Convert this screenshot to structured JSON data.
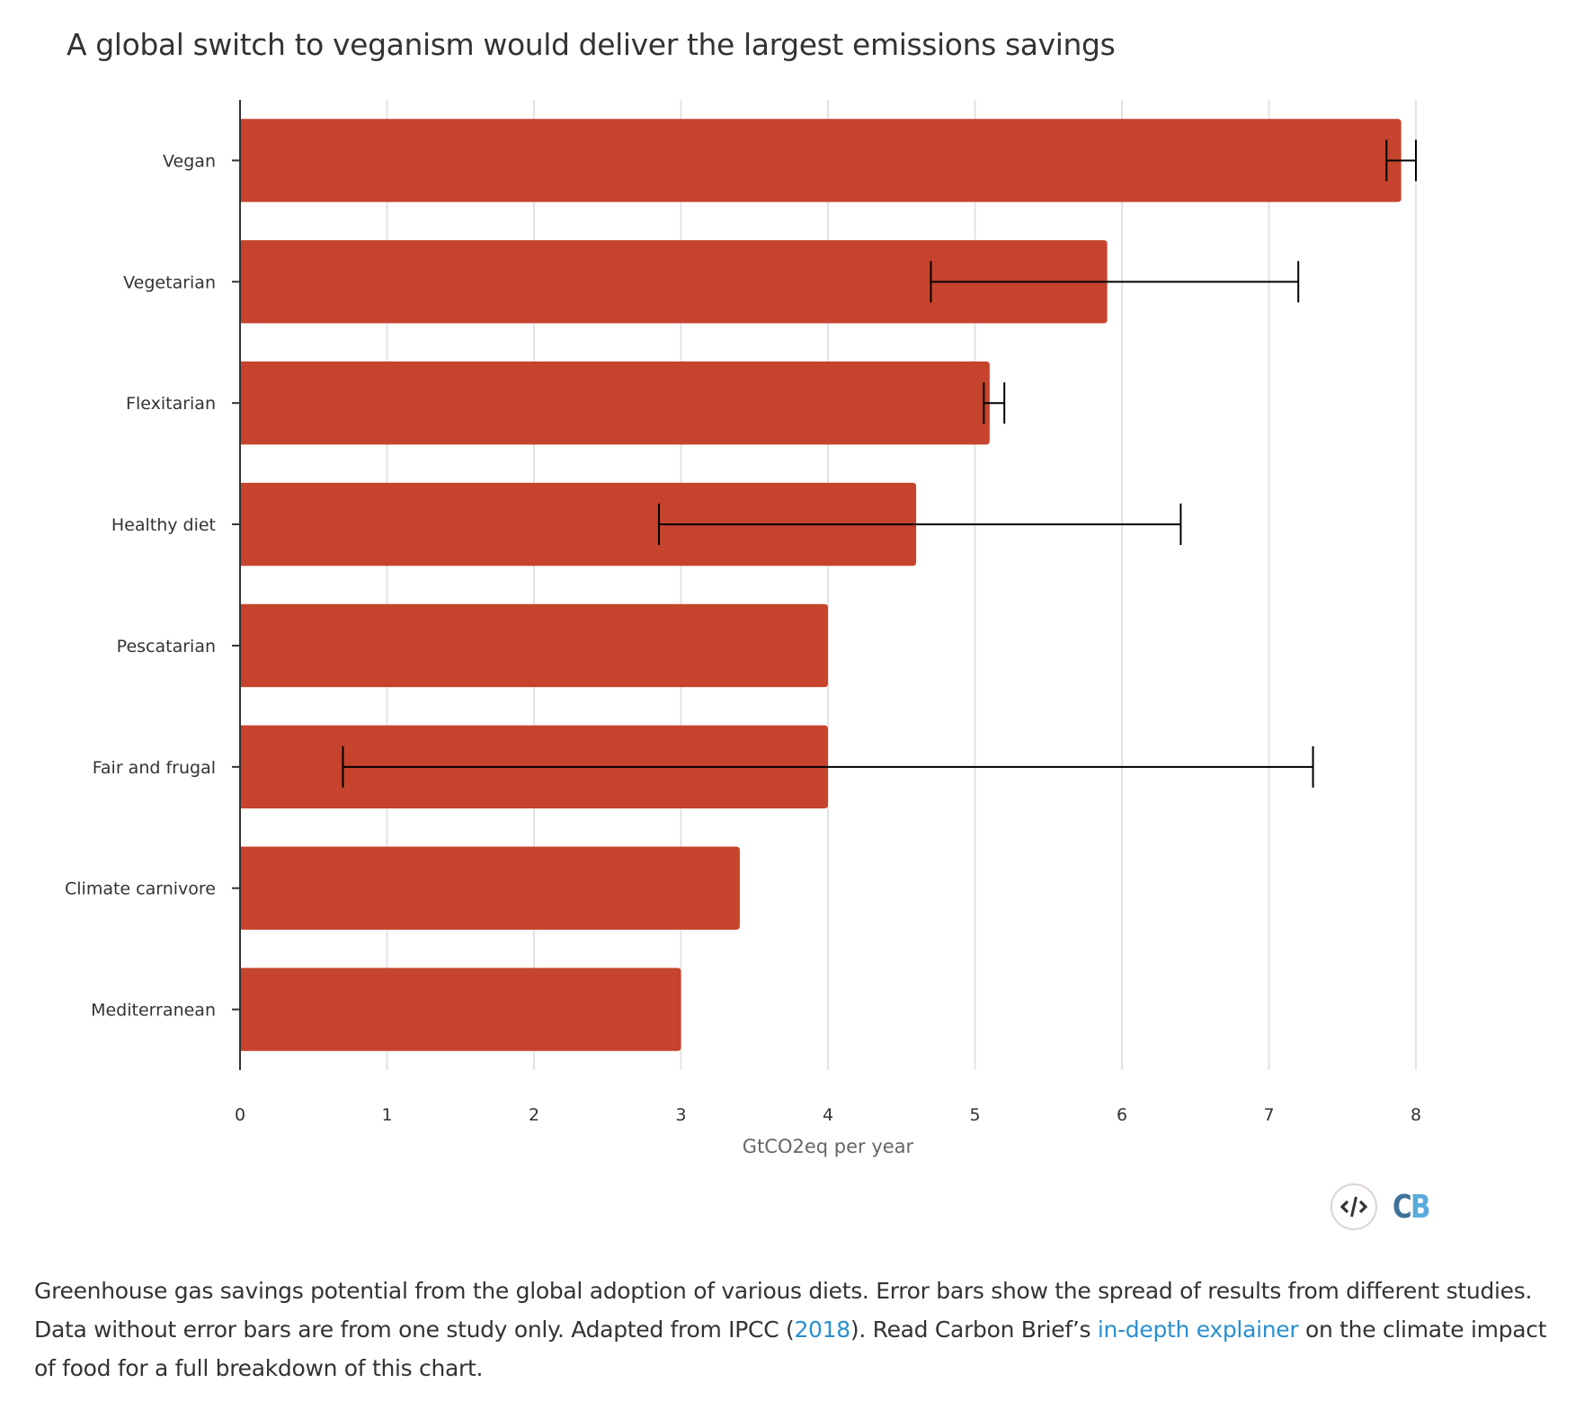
{
  "title": "A global switch to veganism would deliver the largest emissions savings",
  "caption": {
    "part1": "Greenhouse gas savings potential from the global adoption of various diets. Error bars show the spread of results from different studies. Data without error bars are from one study only. Adapted from IPCC (",
    "link1": "2018",
    "part2": "). Read Carbon Brief’s ",
    "link2": "in-depth explainer",
    "part3": " on the climate impact of food for a full breakdown of this chart."
  },
  "logo": {
    "embed_icon": "code-embed-icon",
    "c": "C",
    "b": "B"
  },
  "colors": {
    "bar": "#c6432d",
    "error_bar": "#000000",
    "grid": "#e3e3e3",
    "axis": "#333333",
    "link": "#2a8fce"
  },
  "chart_data": {
    "type": "bar",
    "orientation": "horizontal",
    "title": "A global switch to veganism would deliver the largest emissions savings",
    "xlabel": "GtCO2eq per year",
    "ylabel": "",
    "xlim": [
      0,
      8
    ],
    "xticks": [
      0,
      1,
      2,
      3,
      4,
      5,
      6,
      7,
      8
    ],
    "grid": true,
    "categories": [
      "Vegan",
      "Vegetarian",
      "Flexitarian",
      "Healthy diet",
      "Pescatarian",
      "Fair and frugal",
      "Climate carnivore",
      "Mediterranean"
    ],
    "values": [
      7.9,
      5.9,
      5.1,
      4.6,
      4.0,
      4.0,
      3.4,
      3.0
    ],
    "error_low": [
      7.8,
      4.7,
      5.06,
      2.85,
      null,
      0.7,
      null,
      null
    ],
    "error_high": [
      8.0,
      7.2,
      5.2,
      6.4,
      null,
      7.3,
      null,
      null
    ]
  }
}
